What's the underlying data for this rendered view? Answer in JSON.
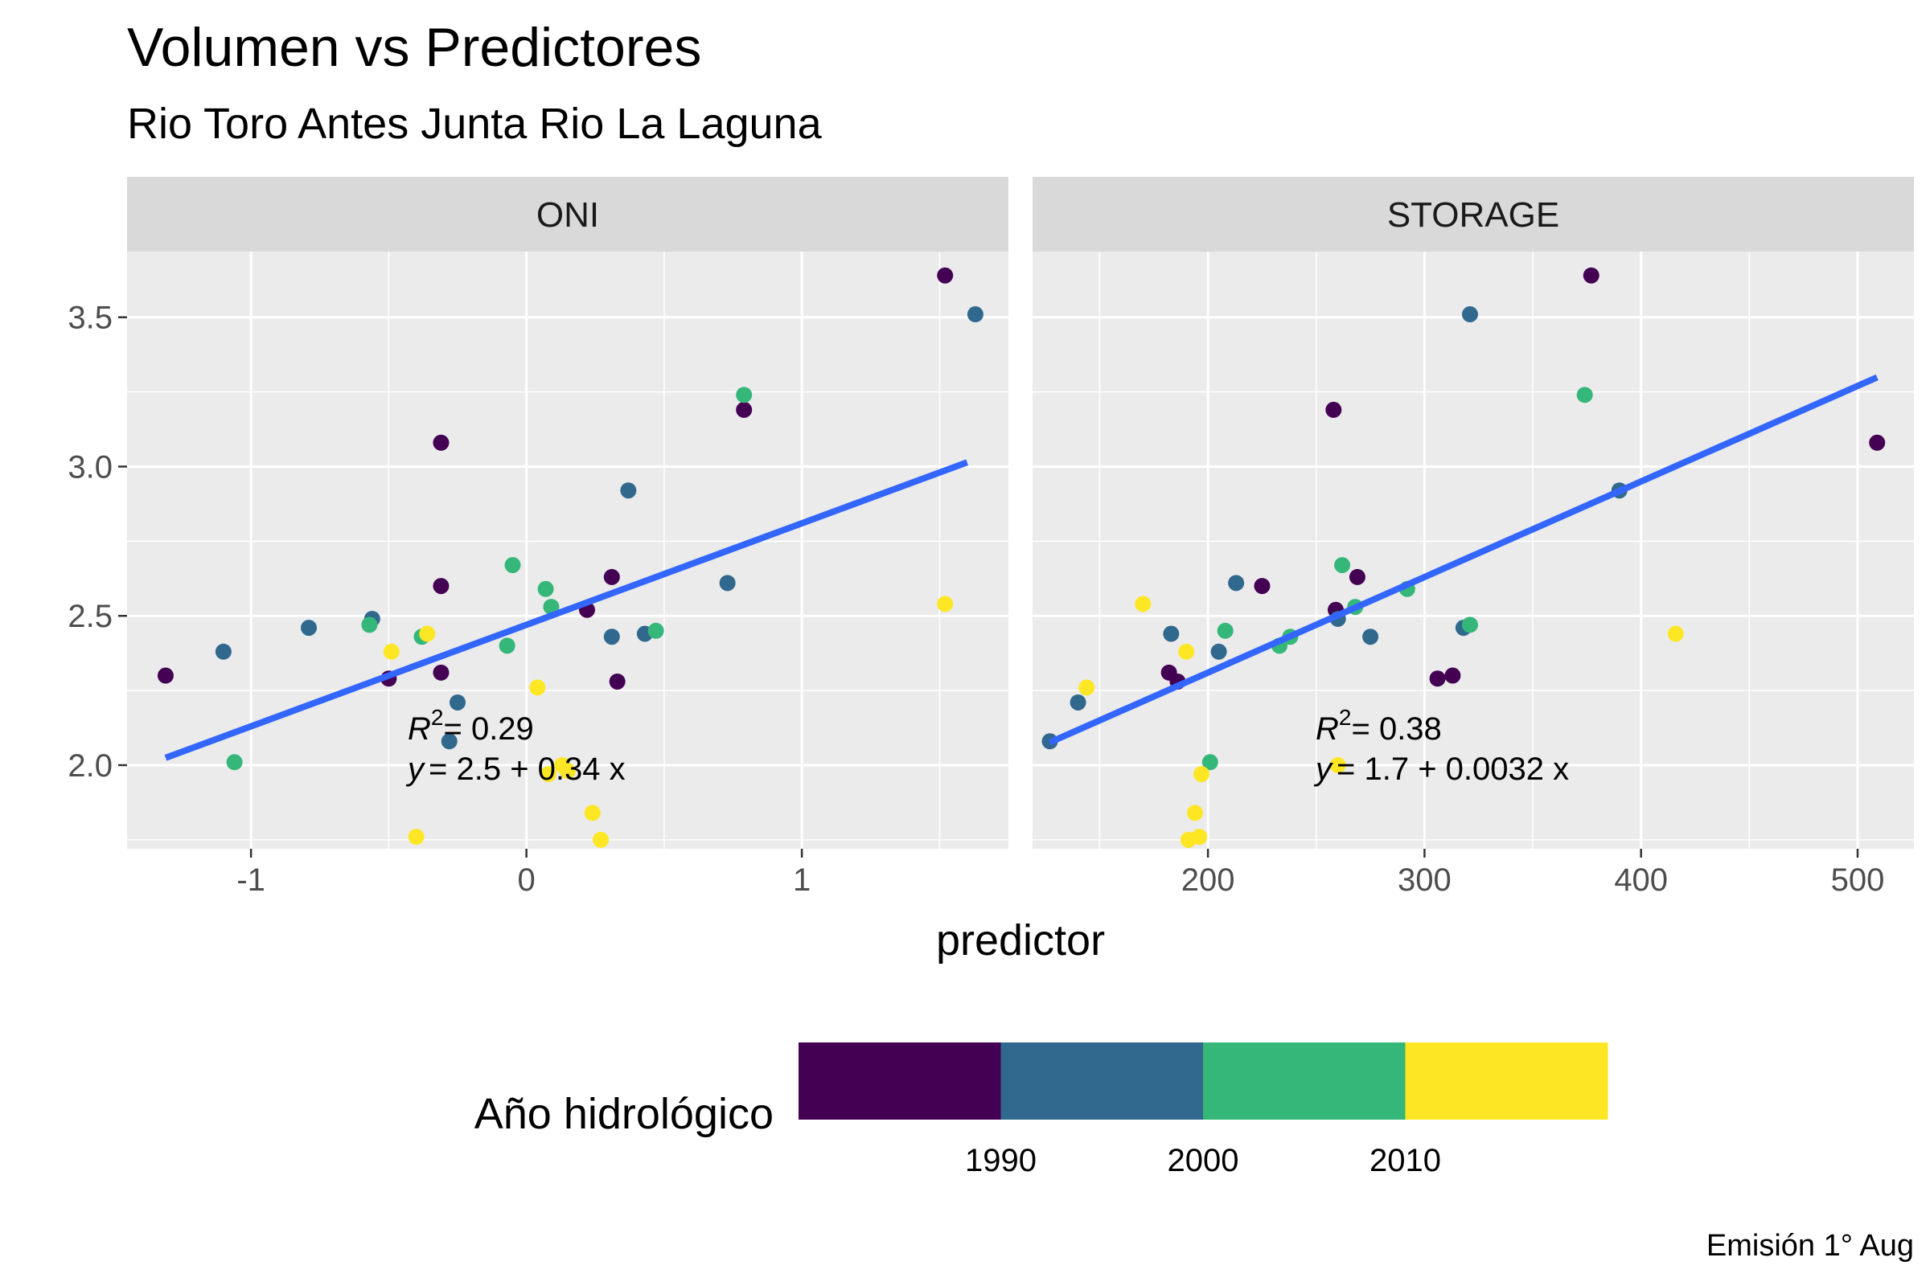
{
  "chart_data": {
    "type": "scatter",
    "title": "Volumen vs Predictores",
    "subtitle": "Rio Toro Antes Junta Rio La Laguna",
    "xlabel": "predictor",
    "ylabel": "",
    "caption": "Emisión 1° Aug",
    "grid": true,
    "y_ticks": [
      "2.0",
      "2.5",
      "3.0",
      "3.5"
    ],
    "ylim": [
      1.72,
      3.72
    ],
    "legend": {
      "title": "Año hidrológico",
      "position": "bottom",
      "labels": [
        "1990",
        "2000",
        "2010"
      ],
      "colors": [
        "#440154",
        "#31688E",
        "#35B779",
        "#FDE725"
      ]
    },
    "fit_line_color": "#3366FF",
    "panels": [
      {
        "strip": "ONI",
        "xlim": [
          -1.45,
          1.75
        ],
        "x_ticks": [
          -1,
          0,
          1
        ],
        "x_tick_labels": [
          "-1",
          "0",
          "1"
        ],
        "equation": {
          "r2": "= 0.29",
          "line": "= 2.5 + 0.34 x"
        },
        "fit": {
          "intercept": 2.47,
          "slope": 0.34,
          "x_range": [
            -1.31,
            1.6
          ]
        },
        "points": [
          {
            "x": -1.31,
            "y": 2.3,
            "g": 0
          },
          {
            "x": -0.5,
            "y": 2.29,
            "g": 0
          },
          {
            "x": -0.31,
            "y": 3.08,
            "g": 0
          },
          {
            "x": -0.31,
            "y": 2.6,
            "g": 0
          },
          {
            "x": -0.31,
            "y": 2.31,
            "g": 0
          },
          {
            "x": 0.22,
            "y": 2.52,
            "g": 0
          },
          {
            "x": 0.31,
            "y": 2.63,
            "g": 0
          },
          {
            "x": 0.33,
            "y": 2.28,
            "g": 0
          },
          {
            "x": 0.79,
            "y": 3.19,
            "g": 0
          },
          {
            "x": 1.52,
            "y": 3.64,
            "g": 0
          },
          {
            "x": -1.1,
            "y": 2.38,
            "g": 1
          },
          {
            "x": -0.79,
            "y": 2.46,
            "g": 1
          },
          {
            "x": -0.56,
            "y": 2.49,
            "g": 1
          },
          {
            "x": -0.28,
            "y": 2.08,
            "g": 1
          },
          {
            "x": -0.25,
            "y": 2.21,
            "g": 1
          },
          {
            "x": 0.31,
            "y": 2.43,
            "g": 1
          },
          {
            "x": 0.37,
            "y": 2.92,
            "g": 1
          },
          {
            "x": 0.43,
            "y": 2.44,
            "g": 1
          },
          {
            "x": 0.73,
            "y": 2.61,
            "g": 1
          },
          {
            "x": 1.63,
            "y": 3.51,
            "g": 1
          },
          {
            "x": -1.06,
            "y": 2.01,
            "g": 2
          },
          {
            "x": -0.57,
            "y": 2.47,
            "g": 2
          },
          {
            "x": -0.38,
            "y": 2.43,
            "g": 2
          },
          {
            "x": -0.07,
            "y": 2.4,
            "g": 2
          },
          {
            "x": -0.05,
            "y": 2.67,
            "g": 2
          },
          {
            "x": 0.07,
            "y": 2.59,
            "g": 2
          },
          {
            "x": 0.09,
            "y": 2.53,
            "g": 2
          },
          {
            "x": 0.47,
            "y": 2.45,
            "g": 2
          },
          {
            "x": 0.79,
            "y": 3.24,
            "g": 2
          },
          {
            "x": -0.4,
            "y": 1.76,
            "g": 3
          },
          {
            "x": -0.36,
            "y": 2.44,
            "g": 3
          },
          {
            "x": -0.49,
            "y": 2.38,
            "g": 3
          },
          {
            "x": 0.04,
            "y": 2.26,
            "g": 3
          },
          {
            "x": 0.08,
            "y": 1.97,
            "g": 3
          },
          {
            "x": 0.13,
            "y": 2.0,
            "g": 3
          },
          {
            "x": 0.15,
            "y": 1.98,
            "g": 3
          },
          {
            "x": 0.24,
            "y": 1.84,
            "g": 3
          },
          {
            "x": 0.27,
            "y": 1.75,
            "g": 3
          },
          {
            "x": 1.52,
            "y": 2.54,
            "g": 3
          }
        ]
      },
      {
        "strip": "STORAGE",
        "xlim": [
          119,
          526
        ],
        "x_ticks": [
          200,
          300,
          400,
          500
        ],
        "x_tick_labels": [
          "200",
          "300",
          "400",
          "500"
        ],
        "equation": {
          "r2": "= 0.38",
          "line": "= 1.7 + 0.0032 x"
        },
        "fit": {
          "intercept": 1.67,
          "slope": 0.0032,
          "x_range": [
            127,
            509
          ]
        },
        "points": [
          {
            "x": 182,
            "y": 2.31,
            "g": 0
          },
          {
            "x": 186,
            "y": 2.28,
            "g": 0
          },
          {
            "x": 225,
            "y": 2.6,
            "g": 0
          },
          {
            "x": 258,
            "y": 3.19,
            "g": 0
          },
          {
            "x": 259,
            "y": 2.52,
            "g": 0
          },
          {
            "x": 269,
            "y": 2.63,
            "g": 0
          },
          {
            "x": 306,
            "y": 2.29,
            "g": 0
          },
          {
            "x": 313,
            "y": 2.3,
            "g": 0
          },
          {
            "x": 377,
            "y": 3.64,
            "g": 0
          },
          {
            "x": 509,
            "y": 3.08,
            "g": 0
          },
          {
            "x": 127,
            "y": 2.08,
            "g": 1
          },
          {
            "x": 140,
            "y": 2.21,
            "g": 1
          },
          {
            "x": 183,
            "y": 2.44,
            "g": 1
          },
          {
            "x": 205,
            "y": 2.38,
            "g": 1
          },
          {
            "x": 213,
            "y": 2.61,
            "g": 1
          },
          {
            "x": 260,
            "y": 2.49,
            "g": 1
          },
          {
            "x": 275,
            "y": 2.43,
            "g": 1
          },
          {
            "x": 318,
            "y": 2.46,
            "g": 1
          },
          {
            "x": 321,
            "y": 3.51,
            "g": 1
          },
          {
            "x": 390,
            "y": 2.92,
            "g": 1
          },
          {
            "x": 201,
            "y": 2.01,
            "g": 2
          },
          {
            "x": 208,
            "y": 2.45,
            "g": 2
          },
          {
            "x": 233,
            "y": 2.4,
            "g": 2
          },
          {
            "x": 238,
            "y": 2.43,
            "g": 2
          },
          {
            "x": 262,
            "y": 2.67,
            "g": 2
          },
          {
            "x": 268,
            "y": 2.53,
            "g": 2
          },
          {
            "x": 292,
            "y": 2.59,
            "g": 2
          },
          {
            "x": 321,
            "y": 2.47,
            "g": 2
          },
          {
            "x": 374,
            "y": 3.24,
            "g": 2
          },
          {
            "x": 144,
            "y": 2.26,
            "g": 3
          },
          {
            "x": 170,
            "y": 2.54,
            "g": 3
          },
          {
            "x": 190,
            "y": 2.38,
            "g": 3
          },
          {
            "x": 191,
            "y": 1.75,
            "g": 3
          },
          {
            "x": 194,
            "y": 1.84,
            "g": 3
          },
          {
            "x": 196,
            "y": 1.76,
            "g": 3
          },
          {
            "x": 197,
            "y": 1.97,
            "g": 3
          },
          {
            "x": 260,
            "y": 2.0,
            "g": 3
          },
          {
            "x": 416,
            "y": 2.44,
            "g": 3
          }
        ]
      }
    ]
  }
}
